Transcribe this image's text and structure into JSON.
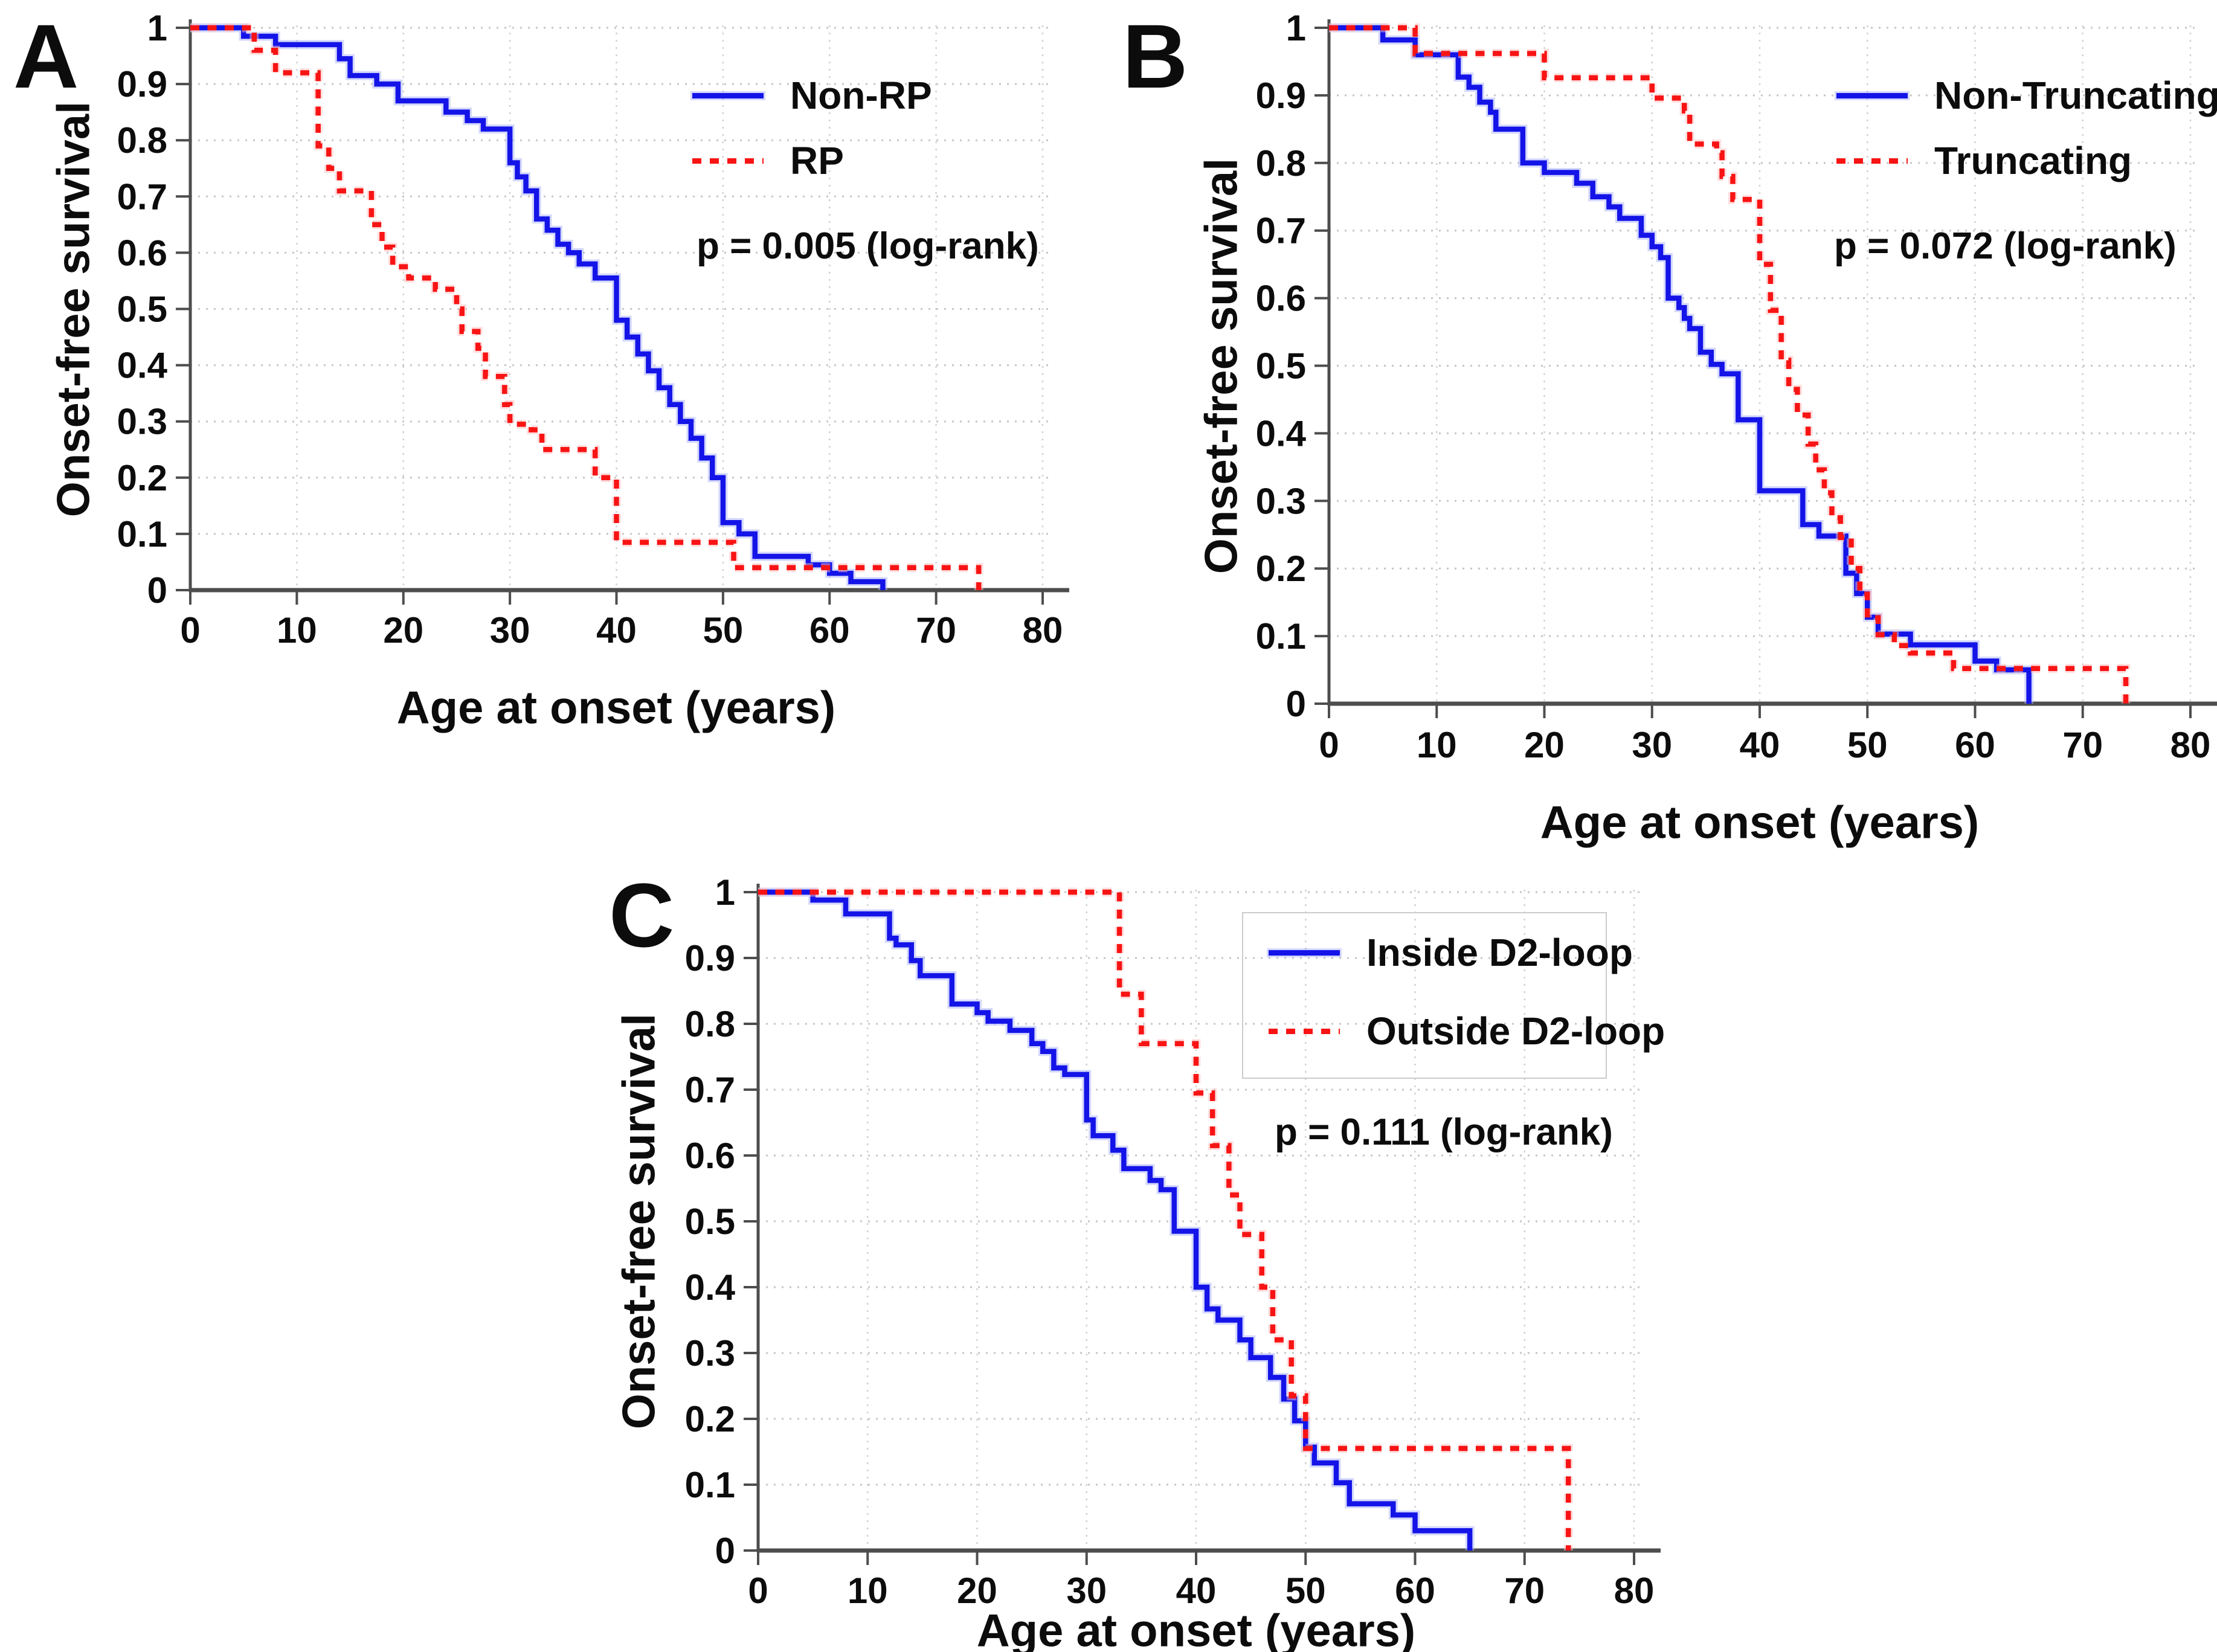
{
  "figure": {
    "panel_letters": [
      "A",
      "B",
      "C"
    ],
    "background": "#ffffff"
  },
  "colors": {
    "series_blue": "#1414e8",
    "series_blue_halo": "#aab2fa",
    "series_red": "#f81414",
    "series_red_halo": "#ffc0c0",
    "grid_horizontal": "#c6c6c6",
    "grid_vertical": "#d2d2d2",
    "axis": "#4d4d4d",
    "text": "#0c0c0c"
  },
  "axes": {
    "xlabel": "Age at onset (years)",
    "ylabel": "Onset-free survival",
    "xticks": [
      0,
      10,
      20,
      30,
      40,
      50,
      60,
      70,
      80
    ],
    "xtick_labels": [
      "0",
      "10",
      "20",
      "30",
      "40",
      "50",
      "60",
      "70",
      "80"
    ],
    "yticks": [
      0,
      0.1,
      0.2,
      0.3,
      0.4,
      0.5,
      0.6,
      0.7,
      0.8,
      0.9,
      1
    ],
    "ytick_labels": [
      "0",
      "0.1",
      "0.2",
      "0.3",
      "0.4",
      "0.5",
      "0.6",
      "0.7",
      "0.8",
      "0.9",
      "1"
    ],
    "xlim": [
      0,
      80
    ],
    "ylim": [
      0,
      1
    ],
    "grid": true
  },
  "chart_data": [
    {
      "panel_letter": "A",
      "type": "line",
      "subtype": "kaplan-meier-step",
      "xlabel": "Age at onset (years)",
      "ylabel": "Onset-free survival",
      "xlim": [
        0,
        80
      ],
      "ylim": [
        0,
        1
      ],
      "legend_position": "upper right",
      "p_label": "p = 0.005 (log-rank)",
      "series": [
        {
          "name": "Non-RP",
          "color": "#1414e8",
          "style": "solid",
          "points": [
            [
              0,
              1
            ],
            [
              5,
              0.985
            ],
            [
              8,
              0.97
            ],
            [
              14,
              0.945
            ],
            [
              15,
              0.915
            ],
            [
              17.5,
              0.9
            ],
            [
              19.5,
              0.87
            ],
            [
              24,
              0.85
            ],
            [
              26,
              0.835
            ],
            [
              27.5,
              0.82
            ],
            [
              30,
              0.76
            ],
            [
              30.7,
              0.735
            ],
            [
              31.5,
              0.71
            ],
            [
              32.5,
              0.66
            ],
            [
              33.5,
              0.64
            ],
            [
              34.5,
              0.615
            ],
            [
              35.5,
              0.6
            ],
            [
              36.5,
              0.58
            ],
            [
              38,
              0.555
            ],
            [
              40,
              0.48
            ],
            [
              41,
              0.45
            ],
            [
              42,
              0.42
            ],
            [
              43,
              0.39
            ],
            [
              44,
              0.36
            ],
            [
              45,
              0.33
            ],
            [
              46,
              0.3
            ],
            [
              47,
              0.27
            ],
            [
              48,
              0.235
            ],
            [
              49,
              0.2
            ],
            [
              50,
              0.12
            ],
            [
              51.5,
              0.1
            ],
            [
              53,
              0.06
            ],
            [
              58,
              0.045
            ],
            [
              60,
              0.03
            ],
            [
              62,
              0.015
            ],
            [
              65,
              0
            ]
          ]
        },
        {
          "name": "RP",
          "color": "#f81414",
          "style": "dotted",
          "points": [
            [
              0,
              1
            ],
            [
              6,
              0.96
            ],
            [
              8,
              0.92
            ],
            [
              12,
              0.79
            ],
            [
              13,
              0.75
            ],
            [
              14,
              0.71
            ],
            [
              17,
              0.65
            ],
            [
              18,
              0.61
            ],
            [
              19,
              0.575
            ],
            [
              20.5,
              0.555
            ],
            [
              23,
              0.535
            ],
            [
              25,
              0.5
            ],
            [
              25.5,
              0.46
            ],
            [
              27,
              0.43
            ],
            [
              27.7,
              0.38
            ],
            [
              29.5,
              0.33
            ],
            [
              30,
              0.295
            ],
            [
              32,
              0.285
            ],
            [
              33,
              0.25
            ],
            [
              38,
              0.2
            ],
            [
              40,
              0.085
            ],
            [
              51,
              0.04
            ],
            [
              74,
              0
            ]
          ]
        }
      ]
    },
    {
      "panel_letter": "B",
      "type": "line",
      "subtype": "kaplan-meier-step",
      "xlabel": "Age at onset (years)",
      "ylabel": "Onset-free survival",
      "xlim": [
        0,
        80
      ],
      "ylim": [
        0,
        1
      ],
      "legend_position": "upper right",
      "p_label": "p = 0.072 (log-rank)",
      "series": [
        {
          "name": "Non-Truncating",
          "color": "#1414e8",
          "style": "solid",
          "points": [
            [
              0,
              1
            ],
            [
              5,
              0.982
            ],
            [
              8,
              0.96
            ],
            [
              12,
              0.927
            ],
            [
              13,
              0.912
            ],
            [
              14,
              0.89
            ],
            [
              15,
              0.875
            ],
            [
              15.5,
              0.85
            ],
            [
              18,
              0.8
            ],
            [
              20,
              0.786
            ],
            [
              23,
              0.77
            ],
            [
              24.5,
              0.75
            ],
            [
              26,
              0.735
            ],
            [
              27,
              0.718
            ],
            [
              29,
              0.693
            ],
            [
              30,
              0.676
            ],
            [
              30.8,
              0.66
            ],
            [
              31.5,
              0.6
            ],
            [
              32.5,
              0.586
            ],
            [
              33,
              0.57
            ],
            [
              33.5,
              0.555
            ],
            [
              34.5,
              0.52
            ],
            [
              35.5,
              0.502
            ],
            [
              36.5,
              0.488
            ],
            [
              38,
              0.42
            ],
            [
              40,
              0.315
            ],
            [
              44,
              0.265
            ],
            [
              45.5,
              0.248
            ],
            [
              48,
              0.193
            ],
            [
              49,
              0.163
            ],
            [
              50,
              0.128
            ],
            [
              51,
              0.103
            ],
            [
              54,
              0.087
            ],
            [
              60,
              0.063
            ],
            [
              62,
              0.05
            ],
            [
              65,
              0
            ]
          ]
        },
        {
          "name": "Truncating",
          "color": "#f81414",
          "style": "dotted",
          "points": [
            [
              0,
              1
            ],
            [
              8,
              0.962
            ],
            [
              20,
              0.926
            ],
            [
              30,
              0.896
            ],
            [
              33,
              0.877
            ],
            [
              33.5,
              0.828
            ],
            [
              36,
              0.815
            ],
            [
              36.5,
              0.78
            ],
            [
              37.5,
              0.746
            ],
            [
              40,
              0.65
            ],
            [
              41,
              0.582
            ],
            [
              42,
              0.508
            ],
            [
              42.7,
              0.465
            ],
            [
              43.5,
              0.427
            ],
            [
              44.5,
              0.384
            ],
            [
              45.2,
              0.346
            ],
            [
              46,
              0.312
            ],
            [
              46.7,
              0.275
            ],
            [
              47.5,
              0.246
            ],
            [
              48.5,
              0.2
            ],
            [
              49.3,
              0.162
            ],
            [
              50,
              0.127
            ],
            [
              51,
              0.102
            ],
            [
              52.5,
              0.086
            ],
            [
              54,
              0.075
            ],
            [
              58,
              0.052
            ],
            [
              74,
              0
            ]
          ]
        }
      ]
    },
    {
      "panel_letter": "C",
      "type": "line",
      "subtype": "kaplan-meier-step",
      "xlabel": "Age at onset (years)",
      "ylabel": "Onset-free survival",
      "xlim": [
        0,
        80
      ],
      "ylim": [
        0,
        1
      ],
      "legend_position": "upper right",
      "legend_frame": true,
      "p_label": "p = 0.111 (log-rank)",
      "series": [
        {
          "name": "Inside D2-loop",
          "color": "#1414e8",
          "style": "solid",
          "points": [
            [
              0,
              1
            ],
            [
              5,
              0.988
            ],
            [
              8,
              0.967
            ],
            [
              12,
              0.93
            ],
            [
              12.6,
              0.92
            ],
            [
              14,
              0.896
            ],
            [
              14.8,
              0.873
            ],
            [
              17.7,
              0.83
            ],
            [
              20,
              0.817
            ],
            [
              21,
              0.804
            ],
            [
              23,
              0.79
            ],
            [
              25,
              0.77
            ],
            [
              26,
              0.758
            ],
            [
              27,
              0.733
            ],
            [
              28,
              0.723
            ],
            [
              30,
              0.654
            ],
            [
              30.6,
              0.63
            ],
            [
              32.4,
              0.608
            ],
            [
              33.4,
              0.58
            ],
            [
              35.8,
              0.562
            ],
            [
              36.8,
              0.548
            ],
            [
              38,
              0.485
            ],
            [
              40,
              0.4
            ],
            [
              41,
              0.367
            ],
            [
              42,
              0.35
            ],
            [
              44,
              0.32
            ],
            [
              45,
              0.293
            ],
            [
              46.8,
              0.263
            ],
            [
              48,
              0.23
            ],
            [
              49,
              0.197
            ],
            [
              50,
              0.157
            ],
            [
              50.8,
              0.133
            ],
            [
              52.8,
              0.103
            ],
            [
              54,
              0.071
            ],
            [
              58,
              0.054
            ],
            [
              60,
              0.03
            ],
            [
              65,
              0
            ]
          ]
        },
        {
          "name": "Outside D2-loop",
          "color": "#f81414",
          "style": "dotted",
          "points": [
            [
              0,
              1
            ],
            [
              33,
              0.845
            ],
            [
              35,
              0.77
            ],
            [
              40,
              0.695
            ],
            [
              41.5,
              0.615
            ],
            [
              43,
              0.54
            ],
            [
              44,
              0.48
            ],
            [
              46,
              0.4
            ],
            [
              47,
              0.32
            ],
            [
              48.7,
              0.235
            ],
            [
              50,
              0.155
            ],
            [
              74,
              0
            ]
          ]
        }
      ]
    }
  ]
}
